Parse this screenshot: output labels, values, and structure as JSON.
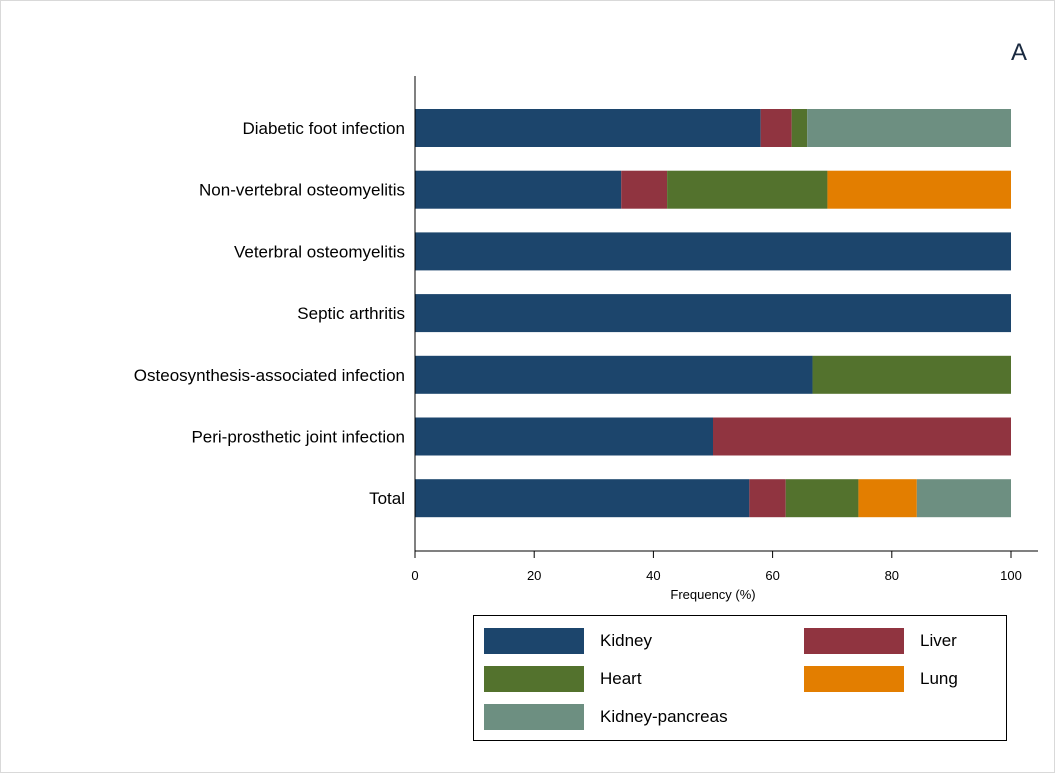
{
  "panel_label": "A",
  "chart_data": {
    "type": "bar",
    "orientation": "horizontal",
    "stacked": true,
    "categories": [
      "Diabetic foot infection",
      "Non-vertebral osteomyelitis",
      "Veterbral osteomyelitis",
      "Septic arthritis",
      "Osteosynthesis-associated infection",
      "Peri-prosthetic joint infection",
      "Total"
    ],
    "series": [
      {
        "name": "Kidney",
        "color": "#1c456c",
        "values": [
          58,
          34.6,
          100,
          100,
          66.7,
          50,
          56.1
        ]
      },
      {
        "name": "Liver",
        "color": "#903440",
        "values": [
          5.2,
          7.7,
          0,
          0,
          0,
          50,
          6.1
        ]
      },
      {
        "name": "Heart",
        "color": "#53722d",
        "values": [
          2.6,
          26.9,
          0,
          0,
          33.3,
          0,
          12.2
        ]
      },
      {
        "name": "Lung",
        "color": "#e37e00",
        "values": [
          0,
          30.8,
          0,
          0,
          0,
          0,
          9.8
        ]
      },
      {
        "name": "Kidney-pancreas",
        "color": "#6d8f81",
        "values": [
          34.2,
          0,
          0,
          0,
          0,
          0,
          15.8
        ]
      }
    ],
    "xlabel": "Frequency (%)",
    "ylabel": "",
    "xlim": [
      0,
      100
    ],
    "xticks": [
      0,
      20,
      40,
      60,
      80,
      100
    ],
    "grid": false,
    "legend_position": "bottom"
  }
}
